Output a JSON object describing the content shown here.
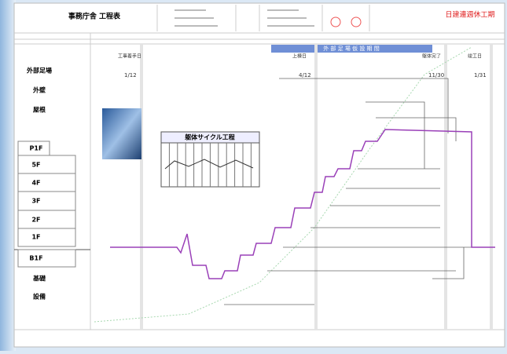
{
  "header": {
    "title": "事務庁舎 工程表",
    "right_title": "日建連週休工期"
  },
  "banner": "外 部 足 場 仮 設 期 間",
  "row_labels": [
    "外部足場",
    "外壁",
    "屋根",
    "P1F",
    "5F",
    "4F",
    "3F",
    "2F",
    "1F",
    "B1F",
    "基礎",
    "設備"
  ],
  "milestones": [
    {
      "label": "工事着手日",
      "date": "1/12"
    },
    {
      "label": "上棟日",
      "date": "4/12"
    },
    {
      "label": "躯体完了",
      "date": "11/30"
    },
    {
      "label": "竣工日",
      "date": "1/31"
    }
  ],
  "inset": {
    "title": "躯体サイクル工程"
  }
}
